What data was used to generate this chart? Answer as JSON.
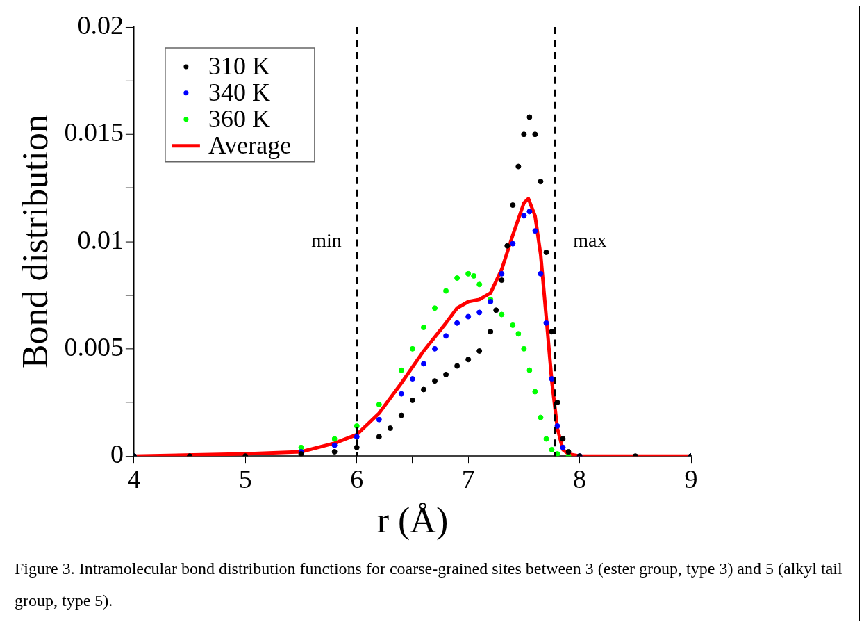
{
  "chart_data": {
    "type": "scatter",
    "xlabel": "r (Å)",
    "ylabel": "Bond distribution",
    "xlim": [
      4,
      9
    ],
    "ylim": [
      0,
      0.02
    ],
    "xticks": [
      4,
      {
        "value": 4.5,
        "label": null
      },
      5,
      {
        "value": 5.5,
        "label": null
      },
      6,
      {
        "value": 6.5,
        "label": null
      },
      7,
      {
        "value": 7.5,
        "label": null
      },
      8,
      {
        "value": 8.5,
        "label": null
      },
      9
    ],
    "yticks": [
      0,
      {
        "value": 0.0025,
        "label": null
      },
      0.005,
      {
        "value": 0.0075,
        "label": null
      },
      0.01,
      {
        "value": 0.0125,
        "label": null
      },
      0.015,
      {
        "value": 0.0175,
        "label": null
      },
      0.02
    ],
    "grid": false,
    "legend": "top left",
    "marker": "circle",
    "series": [
      {
        "name": "310 K",
        "color": "#000000",
        "x": [
          4.0,
          4.5,
          5.0,
          5.5,
          5.8,
          6.0,
          6.2,
          6.3,
          6.4,
          6.5,
          6.6,
          6.7,
          6.8,
          6.9,
          7.0,
          7.1,
          7.2,
          7.25,
          7.3,
          7.35,
          7.4,
          7.45,
          7.5,
          7.55,
          7.6,
          7.65,
          7.7,
          7.75,
          7.8,
          7.85,
          7.9,
          8.0,
          8.5,
          9.0
        ],
        "values": [
          0,
          0,
          0,
          0.0001,
          0.0002,
          0.0004,
          0.0009,
          0.0013,
          0.0019,
          0.0026,
          0.0031,
          0.0035,
          0.0038,
          0.0042,
          0.0045,
          0.0049,
          0.0058,
          0.0068,
          0.0082,
          0.0098,
          0.0117,
          0.0135,
          0.015,
          0.0158,
          0.015,
          0.0128,
          0.0095,
          0.0058,
          0.0025,
          0.0008,
          0.0002,
          0,
          0,
          0
        ]
      },
      {
        "name": "340 K",
        "color": "#0000ff",
        "x": [
          4.0,
          5.0,
          5.5,
          5.8,
          6.0,
          6.2,
          6.4,
          6.5,
          6.6,
          6.7,
          6.8,
          6.9,
          7.0,
          7.1,
          7.2,
          7.3,
          7.4,
          7.5,
          7.55,
          7.6,
          7.65,
          7.7,
          7.75,
          7.8,
          7.85,
          7.9,
          8.0,
          9.0
        ],
        "values": [
          0,
          null,
          0.0002,
          0.0005,
          0.0009,
          0.0017,
          0.0029,
          0.0036,
          0.0043,
          0.005,
          0.0056,
          0.0062,
          0.0065,
          0.0067,
          0.0072,
          0.0085,
          0.0099,
          0.0112,
          0.0114,
          0.0105,
          0.0085,
          0.0062,
          0.0036,
          0.0014,
          0.0004,
          null,
          0,
          0
        ]
      },
      {
        "name": "360 K",
        "color": "#00ff00",
        "x": [
          4.0,
          4.5,
          5.0,
          5.5,
          5.8,
          6.0,
          6.2,
          6.4,
          6.5,
          6.6,
          6.7,
          6.8,
          6.9,
          7.0,
          7.05,
          7.1,
          7.2,
          7.3,
          7.4,
          7.45,
          7.5,
          7.55,
          7.6,
          7.65,
          7.7,
          7.75,
          7.8,
          7.9,
          9.0
        ],
        "values": [
          0,
          null,
          null,
          0.0004,
          0.0008,
          0.0014,
          0.0024,
          0.004,
          0.005,
          0.006,
          0.0069,
          0.0077,
          0.0083,
          0.0085,
          0.0084,
          0.008,
          0.0073,
          0.0066,
          0.0061,
          0.0057,
          0.005,
          0.004,
          0.003,
          0.0018,
          0.0008,
          0.0003,
          0.0001,
          0,
          0
        ]
      },
      {
        "name": "Average",
        "type": "line",
        "color": "#ff0000",
        "marker": "none",
        "x": [
          4.0,
          5.0,
          5.5,
          5.8,
          6.0,
          6.2,
          6.4,
          6.6,
          6.8,
          6.9,
          7.0,
          7.1,
          7.2,
          7.3,
          7.4,
          7.5,
          7.54,
          7.6,
          7.65,
          7.7,
          7.75,
          7.8,
          7.85,
          7.9,
          8.0,
          9.0
        ],
        "values": [
          0,
          0.0001,
          0.0002,
          0.0006,
          0.001,
          0.002,
          0.0034,
          0.0049,
          0.0062,
          0.0069,
          0.0072,
          0.0073,
          0.0076,
          0.0087,
          0.0103,
          0.0118,
          0.012,
          0.0112,
          0.0094,
          0.0065,
          0.0035,
          0.0013,
          0.0003,
          0.0001,
          0,
          0
        ]
      }
    ],
    "ref_lines": [
      {
        "axis": "x",
        "value": 6.0,
        "label": "min",
        "line_style": "dashed",
        "color": "#000000"
      },
      {
        "axis": "x",
        "value": 7.78,
        "label": "max",
        "line_style": "dashed",
        "color": "#000000"
      }
    ],
    "annotations": [
      "Figure 3. Intramolecular bond distribution functions for coarse-grained sites between 3 (ester group, type 3) and 5 (alkyl tail group, type 5)."
    ]
  }
}
